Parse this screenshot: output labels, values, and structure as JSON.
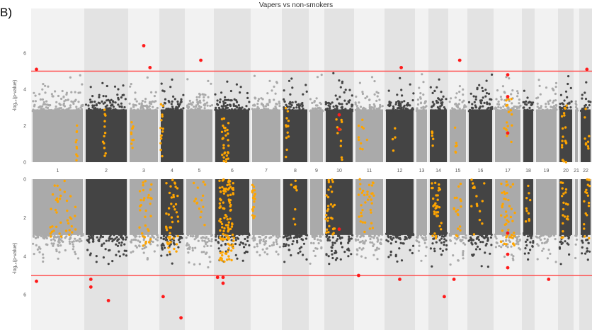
{
  "panel_label": "B)",
  "chart_data": {
    "type": "scatter",
    "subtype": "mirrored-manhattan",
    "title": "Vapers vs non-smokers",
    "ylabel": "-log₁₀(p-value)",
    "threshold": 5,
    "threshold_color": "#ff4d4d",
    "colors": {
      "odd_band_points": "#aaaaaa",
      "even_band_points": "#444444",
      "highlight": "#ffa500",
      "significant": "#ff1a1a",
      "band_light": "#f2f2f2",
      "band_dark": "#e3e3e3"
    },
    "chromosomes": [
      "1",
      "2",
      "3",
      "4",
      "5",
      "6",
      "7",
      "8",
      "9",
      "10",
      "11",
      "12",
      "13",
      "14",
      "15",
      "16",
      "17",
      "18",
      "19",
      "20",
      "21",
      "22"
    ],
    "top_panel": {
      "yticks": [
        0,
        2,
        4,
        6
      ],
      "ylim": [
        0,
        7
      ],
      "significant_points": [
        {
          "chr": "1",
          "pos": 0.1,
          "y": 5.1
        },
        {
          "chr": "3",
          "pos": 0.5,
          "y": 6.4
        },
        {
          "chr": "3",
          "pos": 0.7,
          "y": 5.2
        },
        {
          "chr": "5",
          "pos": 0.55,
          "y": 5.6
        },
        {
          "chr": "10",
          "pos": 0.5,
          "y": 2.6
        },
        {
          "chr": "10",
          "pos": 0.5,
          "y": 1.8
        },
        {
          "chr": "12",
          "pos": 0.55,
          "y": 5.2
        },
        {
          "chr": "15",
          "pos": 0.6,
          "y": 5.6
        },
        {
          "chr": "17",
          "pos": 0.5,
          "y": 4.8
        },
        {
          "chr": "17",
          "pos": 0.5,
          "y": 3.6
        },
        {
          "chr": "17",
          "pos": 0.5,
          "y": 1.6
        },
        {
          "chr": "22",
          "pos": 0.6,
          "y": 5.1
        }
      ]
    },
    "bottom_panel": {
      "yticks": [
        0,
        2,
        4,
        6
      ],
      "ylim": [
        0,
        8
      ],
      "significant_points": [
        {
          "chr": "1",
          "pos": 0.1,
          "y": 5.3
        },
        {
          "chr": "2",
          "pos": 0.15,
          "y": 5.6
        },
        {
          "chr": "2",
          "pos": 0.15,
          "y": 5.2
        },
        {
          "chr": "2",
          "pos": 0.55,
          "y": 6.3
        },
        {
          "chr": "3",
          "pos": 0.5,
          "y": 8.0
        },
        {
          "chr": "4",
          "pos": 0.15,
          "y": 6.1
        },
        {
          "chr": "4",
          "pos": 0.85,
          "y": 7.2
        },
        {
          "chr": "6",
          "pos": 0.1,
          "y": 5.1
        },
        {
          "chr": "6",
          "pos": 0.25,
          "y": 5.4
        },
        {
          "chr": "6",
          "pos": 0.25,
          "y": 5.1
        },
        {
          "chr": "10",
          "pos": 0.5,
          "y": 2.6
        },
        {
          "chr": "11",
          "pos": 0.15,
          "y": 5.0
        },
        {
          "chr": "12",
          "pos": 0.5,
          "y": 5.2
        },
        {
          "chr": "14",
          "pos": 0.8,
          "y": 6.1
        },
        {
          "chr": "15",
          "pos": 0.3,
          "y": 5.2
        },
        {
          "chr": "17",
          "pos": 0.5,
          "y": 4.6
        },
        {
          "chr": "17",
          "pos": 0.5,
          "y": 3.9
        },
        {
          "chr": "17",
          "pos": 0.5,
          "y": 2.8
        },
        {
          "chr": "19",
          "pos": 0.6,
          "y": 5.2
        }
      ]
    }
  }
}
